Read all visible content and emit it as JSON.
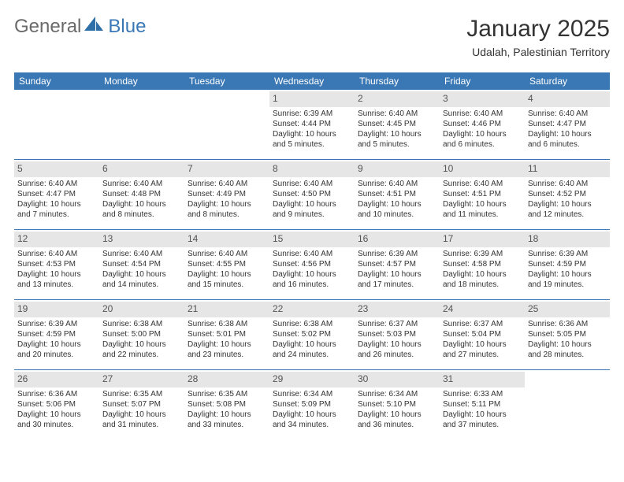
{
  "brand": {
    "part1": "General",
    "part2": "Blue"
  },
  "title": "January 2025",
  "subtitle": "Udalah, Palestinian Territory",
  "header_bg": "#3a78b5",
  "header_text_color": "#ffffff",
  "daynum_bg": "#e6e6e6",
  "sep_color": "#3a78b5",
  "weekdays": [
    "Sunday",
    "Monday",
    "Tuesday",
    "Wednesday",
    "Thursday",
    "Friday",
    "Saturday"
  ],
  "weeks": [
    [
      null,
      null,
      null,
      {
        "n": "1",
        "sr": "Sunrise: 6:39 AM",
        "ss": "Sunset: 4:44 PM",
        "d1": "Daylight: 10 hours",
        "d2": "and 5 minutes."
      },
      {
        "n": "2",
        "sr": "Sunrise: 6:40 AM",
        "ss": "Sunset: 4:45 PM",
        "d1": "Daylight: 10 hours",
        "d2": "and 5 minutes."
      },
      {
        "n": "3",
        "sr": "Sunrise: 6:40 AM",
        "ss": "Sunset: 4:46 PM",
        "d1": "Daylight: 10 hours",
        "d2": "and 6 minutes."
      },
      {
        "n": "4",
        "sr": "Sunrise: 6:40 AM",
        "ss": "Sunset: 4:47 PM",
        "d1": "Daylight: 10 hours",
        "d2": "and 6 minutes."
      }
    ],
    [
      {
        "n": "5",
        "sr": "Sunrise: 6:40 AM",
        "ss": "Sunset: 4:47 PM",
        "d1": "Daylight: 10 hours",
        "d2": "and 7 minutes."
      },
      {
        "n": "6",
        "sr": "Sunrise: 6:40 AM",
        "ss": "Sunset: 4:48 PM",
        "d1": "Daylight: 10 hours",
        "d2": "and 8 minutes."
      },
      {
        "n": "7",
        "sr": "Sunrise: 6:40 AM",
        "ss": "Sunset: 4:49 PM",
        "d1": "Daylight: 10 hours",
        "d2": "and 8 minutes."
      },
      {
        "n": "8",
        "sr": "Sunrise: 6:40 AM",
        "ss": "Sunset: 4:50 PM",
        "d1": "Daylight: 10 hours",
        "d2": "and 9 minutes."
      },
      {
        "n": "9",
        "sr": "Sunrise: 6:40 AM",
        "ss": "Sunset: 4:51 PM",
        "d1": "Daylight: 10 hours",
        "d2": "and 10 minutes."
      },
      {
        "n": "10",
        "sr": "Sunrise: 6:40 AM",
        "ss": "Sunset: 4:51 PM",
        "d1": "Daylight: 10 hours",
        "d2": "and 11 minutes."
      },
      {
        "n": "11",
        "sr": "Sunrise: 6:40 AM",
        "ss": "Sunset: 4:52 PM",
        "d1": "Daylight: 10 hours",
        "d2": "and 12 minutes."
      }
    ],
    [
      {
        "n": "12",
        "sr": "Sunrise: 6:40 AM",
        "ss": "Sunset: 4:53 PM",
        "d1": "Daylight: 10 hours",
        "d2": "and 13 minutes."
      },
      {
        "n": "13",
        "sr": "Sunrise: 6:40 AM",
        "ss": "Sunset: 4:54 PM",
        "d1": "Daylight: 10 hours",
        "d2": "and 14 minutes."
      },
      {
        "n": "14",
        "sr": "Sunrise: 6:40 AM",
        "ss": "Sunset: 4:55 PM",
        "d1": "Daylight: 10 hours",
        "d2": "and 15 minutes."
      },
      {
        "n": "15",
        "sr": "Sunrise: 6:40 AM",
        "ss": "Sunset: 4:56 PM",
        "d1": "Daylight: 10 hours",
        "d2": "and 16 minutes."
      },
      {
        "n": "16",
        "sr": "Sunrise: 6:39 AM",
        "ss": "Sunset: 4:57 PM",
        "d1": "Daylight: 10 hours",
        "d2": "and 17 minutes."
      },
      {
        "n": "17",
        "sr": "Sunrise: 6:39 AM",
        "ss": "Sunset: 4:58 PM",
        "d1": "Daylight: 10 hours",
        "d2": "and 18 minutes."
      },
      {
        "n": "18",
        "sr": "Sunrise: 6:39 AM",
        "ss": "Sunset: 4:59 PM",
        "d1": "Daylight: 10 hours",
        "d2": "and 19 minutes."
      }
    ],
    [
      {
        "n": "19",
        "sr": "Sunrise: 6:39 AM",
        "ss": "Sunset: 4:59 PM",
        "d1": "Daylight: 10 hours",
        "d2": "and 20 minutes."
      },
      {
        "n": "20",
        "sr": "Sunrise: 6:38 AM",
        "ss": "Sunset: 5:00 PM",
        "d1": "Daylight: 10 hours",
        "d2": "and 22 minutes."
      },
      {
        "n": "21",
        "sr": "Sunrise: 6:38 AM",
        "ss": "Sunset: 5:01 PM",
        "d1": "Daylight: 10 hours",
        "d2": "and 23 minutes."
      },
      {
        "n": "22",
        "sr": "Sunrise: 6:38 AM",
        "ss": "Sunset: 5:02 PM",
        "d1": "Daylight: 10 hours",
        "d2": "and 24 minutes."
      },
      {
        "n": "23",
        "sr": "Sunrise: 6:37 AM",
        "ss": "Sunset: 5:03 PM",
        "d1": "Daylight: 10 hours",
        "d2": "and 26 minutes."
      },
      {
        "n": "24",
        "sr": "Sunrise: 6:37 AM",
        "ss": "Sunset: 5:04 PM",
        "d1": "Daylight: 10 hours",
        "d2": "and 27 minutes."
      },
      {
        "n": "25",
        "sr": "Sunrise: 6:36 AM",
        "ss": "Sunset: 5:05 PM",
        "d1": "Daylight: 10 hours",
        "d2": "and 28 minutes."
      }
    ],
    [
      {
        "n": "26",
        "sr": "Sunrise: 6:36 AM",
        "ss": "Sunset: 5:06 PM",
        "d1": "Daylight: 10 hours",
        "d2": "and 30 minutes."
      },
      {
        "n": "27",
        "sr": "Sunrise: 6:35 AM",
        "ss": "Sunset: 5:07 PM",
        "d1": "Daylight: 10 hours",
        "d2": "and 31 minutes."
      },
      {
        "n": "28",
        "sr": "Sunrise: 6:35 AM",
        "ss": "Sunset: 5:08 PM",
        "d1": "Daylight: 10 hours",
        "d2": "and 33 minutes."
      },
      {
        "n": "29",
        "sr": "Sunrise: 6:34 AM",
        "ss": "Sunset: 5:09 PM",
        "d1": "Daylight: 10 hours",
        "d2": "and 34 minutes."
      },
      {
        "n": "30",
        "sr": "Sunrise: 6:34 AM",
        "ss": "Sunset: 5:10 PM",
        "d1": "Daylight: 10 hours",
        "d2": "and 36 minutes."
      },
      {
        "n": "31",
        "sr": "Sunrise: 6:33 AM",
        "ss": "Sunset: 5:11 PM",
        "d1": "Daylight: 10 hours",
        "d2": "and 37 minutes."
      },
      null
    ]
  ]
}
